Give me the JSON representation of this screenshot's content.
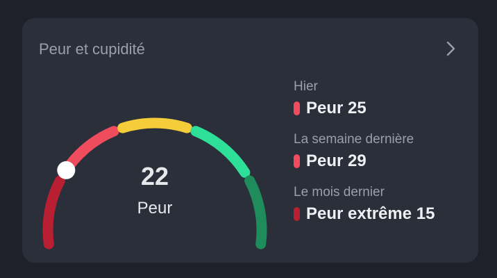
{
  "card": {
    "title": "Peur et cupidité",
    "chevron_icon": "chevron-right-icon"
  },
  "gauge": {
    "value": "22",
    "label": "Peur",
    "value_number": 22,
    "range": [
      0,
      100
    ],
    "segment_colors": [
      "#b81f33",
      "#ef4c5e",
      "#f5cd3a",
      "#2edf9a",
      "#1f8c5c"
    ],
    "marker_color": "#ffffff"
  },
  "history": [
    {
      "period": "Hier",
      "value": "Peur 25",
      "color": "#ef4c5e"
    },
    {
      "period": "La semaine dernière",
      "value": "Peur 29",
      "color": "#ef4c5e"
    },
    {
      "period": "Le mois dernier",
      "value": "Peur extrême 15",
      "color": "#b81f33"
    }
  ]
}
